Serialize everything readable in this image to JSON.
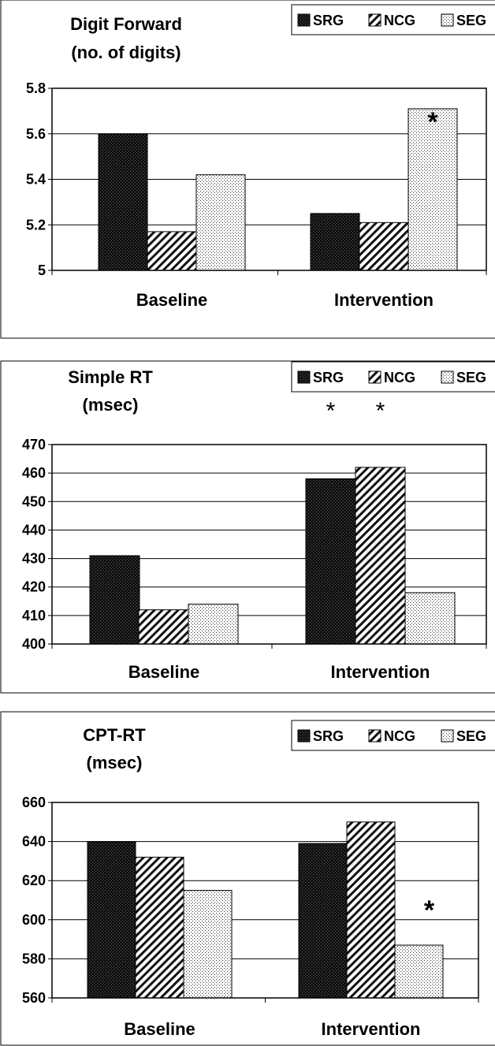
{
  "chart_data": [
    {
      "type": "bar",
      "title": "Digit Forward",
      "subtitle": "(no. of digits)",
      "categories": [
        "Baseline",
        "Intervention"
      ],
      "series": [
        {
          "name": "SRG",
          "values": [
            5.6,
            5.25
          ]
        },
        {
          "name": "NCG",
          "values": [
            5.17,
            5.21
          ]
        },
        {
          "name": "SEG",
          "values": [
            5.42,
            5.71
          ]
        }
      ],
      "ylim": [
        5,
        5.8
      ],
      "yticks": [
        "5",
        "5.2",
        "5.4",
        "5.6",
        "5.8"
      ],
      "grid": true,
      "legend": "top-right",
      "annotations": [
        {
          "text": "*",
          "category": "Intervention",
          "series": "SEG"
        }
      ]
    },
    {
      "type": "bar",
      "title": "Simple RT",
      "subtitle": "(msec)",
      "categories": [
        "Baseline",
        "Intervention"
      ],
      "series": [
        {
          "name": "SRG",
          "values": [
            431,
            458
          ]
        },
        {
          "name": "NCG",
          "values": [
            412,
            462
          ]
        },
        {
          "name": "SEG",
          "values": [
            414,
            418
          ]
        }
      ],
      "ylim": [
        400,
        470
      ],
      "yticks": [
        "400",
        "410",
        "420",
        "430",
        "440",
        "450",
        "460",
        "470"
      ],
      "grid": true,
      "legend": "top-right",
      "annotations": [
        {
          "text": "*",
          "category": "Intervention",
          "series": "SRG"
        },
        {
          "text": "*",
          "category": "Intervention",
          "series": "NCG"
        }
      ]
    },
    {
      "type": "bar",
      "title": "CPT-RT",
      "subtitle": "(msec)",
      "categories": [
        "Baseline",
        "Intervention"
      ],
      "series": [
        {
          "name": "SRG",
          "values": [
            640,
            639
          ]
        },
        {
          "name": "NCG",
          "values": [
            632,
            650
          ]
        },
        {
          "name": "SEG",
          "values": [
            615,
            587
          ]
        }
      ],
      "ylim": [
        560,
        660
      ],
      "yticks": [
        "560",
        "580",
        "600",
        "620",
        "640",
        "660"
      ],
      "grid": true,
      "legend": "top-right",
      "annotations": [
        {
          "text": "*",
          "category": "Intervention",
          "series": "SEG"
        }
      ]
    }
  ]
}
